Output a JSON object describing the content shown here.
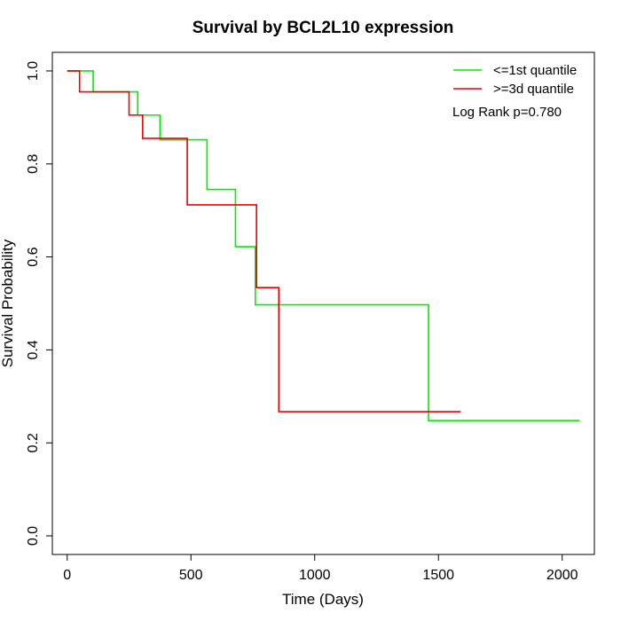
{
  "chart_data": {
    "type": "line",
    "step": true,
    "title": "Survival by BCL2L10 expression",
    "xlabel": "Time (Days)",
    "ylabel": "Survival Probability",
    "xlim": [
      -60,
      2130
    ],
    "ylim": [
      -0.04,
      1.04
    ],
    "x_ticks": [
      0,
      500,
      1000,
      1500,
      2000
    ],
    "y_ticks": [
      0.0,
      0.2,
      0.4,
      0.6,
      0.8,
      1.0
    ],
    "x_tick_labels": [
      "0",
      "500",
      "1000",
      "1500",
      "2000"
    ],
    "y_tick_labels": [
      "0.0",
      "0.2",
      "0.4",
      "0.6",
      "0.8",
      "1.0"
    ],
    "grid": false,
    "legend_position": "top-right",
    "annotation": "Log Rank p=0.780",
    "series": [
      {
        "name": "<=1st quantile",
        "color": "#00ee00",
        "x": [
          0,
          105,
          285,
          375,
          565,
          680,
          760,
          1460,
          2070
        ],
        "y": [
          1.0,
          0.955,
          0.905,
          0.852,
          0.745,
          0.622,
          0.497,
          0.248,
          0.248
        ]
      },
      {
        "name": ">=3d quantile",
        "color": "#ee0000",
        "x": [
          0,
          50,
          250,
          305,
          485,
          765,
          855,
          1590
        ],
        "y": [
          1.0,
          0.955,
          0.905,
          0.855,
          0.712,
          0.534,
          0.267,
          0.267
        ]
      }
    ]
  }
}
